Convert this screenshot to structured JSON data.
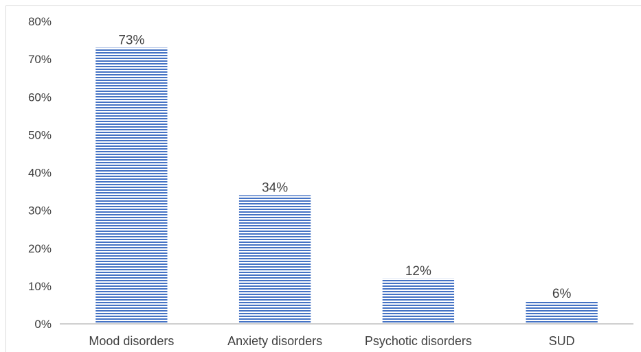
{
  "chart_data": {
    "type": "bar",
    "categories": [
      "Mood disorders",
      "Anxiety disorders",
      "Psychotic disorders",
      "SUD"
    ],
    "values": [
      73,
      34,
      12,
      6
    ],
    "data_labels": [
      "73%",
      "34%",
      "12%",
      "6%"
    ],
    "ylim": [
      0,
      80
    ],
    "yticks": [
      0,
      10,
      20,
      30,
      40,
      50,
      60,
      70,
      80
    ],
    "ytick_labels": [
      "0%",
      "10%",
      "20%",
      "30%",
      "40%",
      "50%",
      "60%",
      "70%",
      "80%"
    ],
    "title": "",
    "xlabel": "",
    "ylabel": "",
    "grid": false,
    "legend": "none",
    "bar_color": "#4472c4",
    "bar_fill": "horizontal-stripes"
  }
}
